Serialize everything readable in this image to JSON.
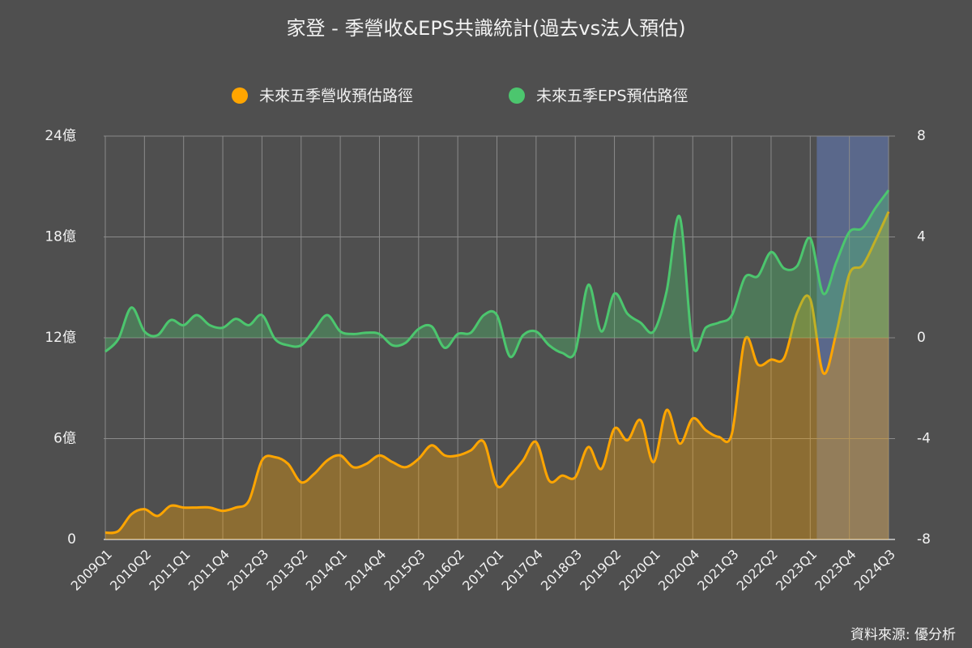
{
  "chart_data": {
    "type": "area",
    "title": "家登 - 季營收&EPS共識統計(過去vs法人預估)",
    "source": "資料來源: 優分析",
    "categories": [
      "2009Q1",
      null,
      null,
      "2010Q2",
      null,
      null,
      "2011Q1",
      null,
      null,
      "2011Q4",
      null,
      null,
      "2012Q3",
      null,
      null,
      "2013Q2",
      null,
      null,
      "2014Q1",
      null,
      null,
      "2014Q4",
      null,
      null,
      "2015Q3",
      null,
      null,
      "2016Q2",
      null,
      null,
      "2017Q1",
      null,
      null,
      "2017Q4",
      null,
      null,
      "2018Q3",
      null,
      null,
      "2019Q2",
      null,
      null,
      "2020Q1",
      null,
      null,
      "2020Q4",
      null,
      null,
      "2021Q3",
      null,
      null,
      "2022Q2",
      null,
      null,
      "2023Q1",
      null,
      null,
      "2023Q4",
      null,
      null,
      "2024Q3"
    ],
    "series": [
      {
        "name": "未來五季營收預估路徑",
        "color": "#ffa500",
        "axis": "y",
        "values": [
          0.4,
          0.5,
          1.5,
          1.8,
          1.4,
          2.0,
          1.9,
          1.9,
          1.9,
          1.7,
          1.9,
          2.3,
          4.7,
          4.9,
          4.5,
          3.4,
          3.9,
          4.7,
          5.0,
          4.3,
          4.5,
          5.0,
          4.6,
          4.3,
          4.8,
          5.6,
          5.0,
          5.0,
          5.3,
          5.8,
          3.2,
          3.8,
          4.7,
          5.8,
          3.5,
          3.8,
          3.7,
          5.5,
          4.2,
          6.6,
          5.9,
          7.1,
          4.6,
          7.7,
          5.7,
          7.2,
          6.5,
          6.1,
          6.3,
          11.9,
          10.4,
          10.7,
          10.8,
          13.5,
          14.3,
          9.9,
          12.3,
          15.8,
          16.3,
          17.8,
          19.5
        ]
      },
      {
        "name": "未來五季EPS預估路徑",
        "color": "#4cc66e",
        "axis": "y2",
        "values": [
          -0.55,
          -0.05,
          1.2,
          0.25,
          0.1,
          0.7,
          0.5,
          0.9,
          0.5,
          0.4,
          0.75,
          0.5,
          0.9,
          -0.05,
          -0.3,
          -0.3,
          0.3,
          0.9,
          0.25,
          0.15,
          0.2,
          0.15,
          -0.3,
          -0.2,
          0.35,
          0.45,
          -0.4,
          0.15,
          0.2,
          0.9,
          0.9,
          -0.75,
          0.1,
          0.25,
          -0.3,
          -0.6,
          -0.55,
          2.1,
          0.25,
          1.75,
          0.95,
          0.6,
          0.25,
          1.85,
          4.8,
          -0.3,
          0.4,
          0.6,
          0.9,
          2.4,
          2.45,
          3.4,
          2.75,
          2.85,
          3.95,
          1.75,
          3.0,
          4.2,
          4.35,
          5.15,
          5.85
        ]
      }
    ],
    "ylim": [
      0,
      24
    ],
    "yticks": [
      0,
      {
        "value": 6,
        "label": "6億"
      },
      {
        "value": 12,
        "label": "12億"
      },
      {
        "value": 18,
        "label": "18億"
      },
      {
        "value": 24,
        "label": "24億"
      }
    ],
    "y2lim": [
      -8,
      8
    ],
    "y2ticks": [
      -8,
      -4,
      0,
      4,
      8
    ],
    "grid": true,
    "legend": "top"
  }
}
